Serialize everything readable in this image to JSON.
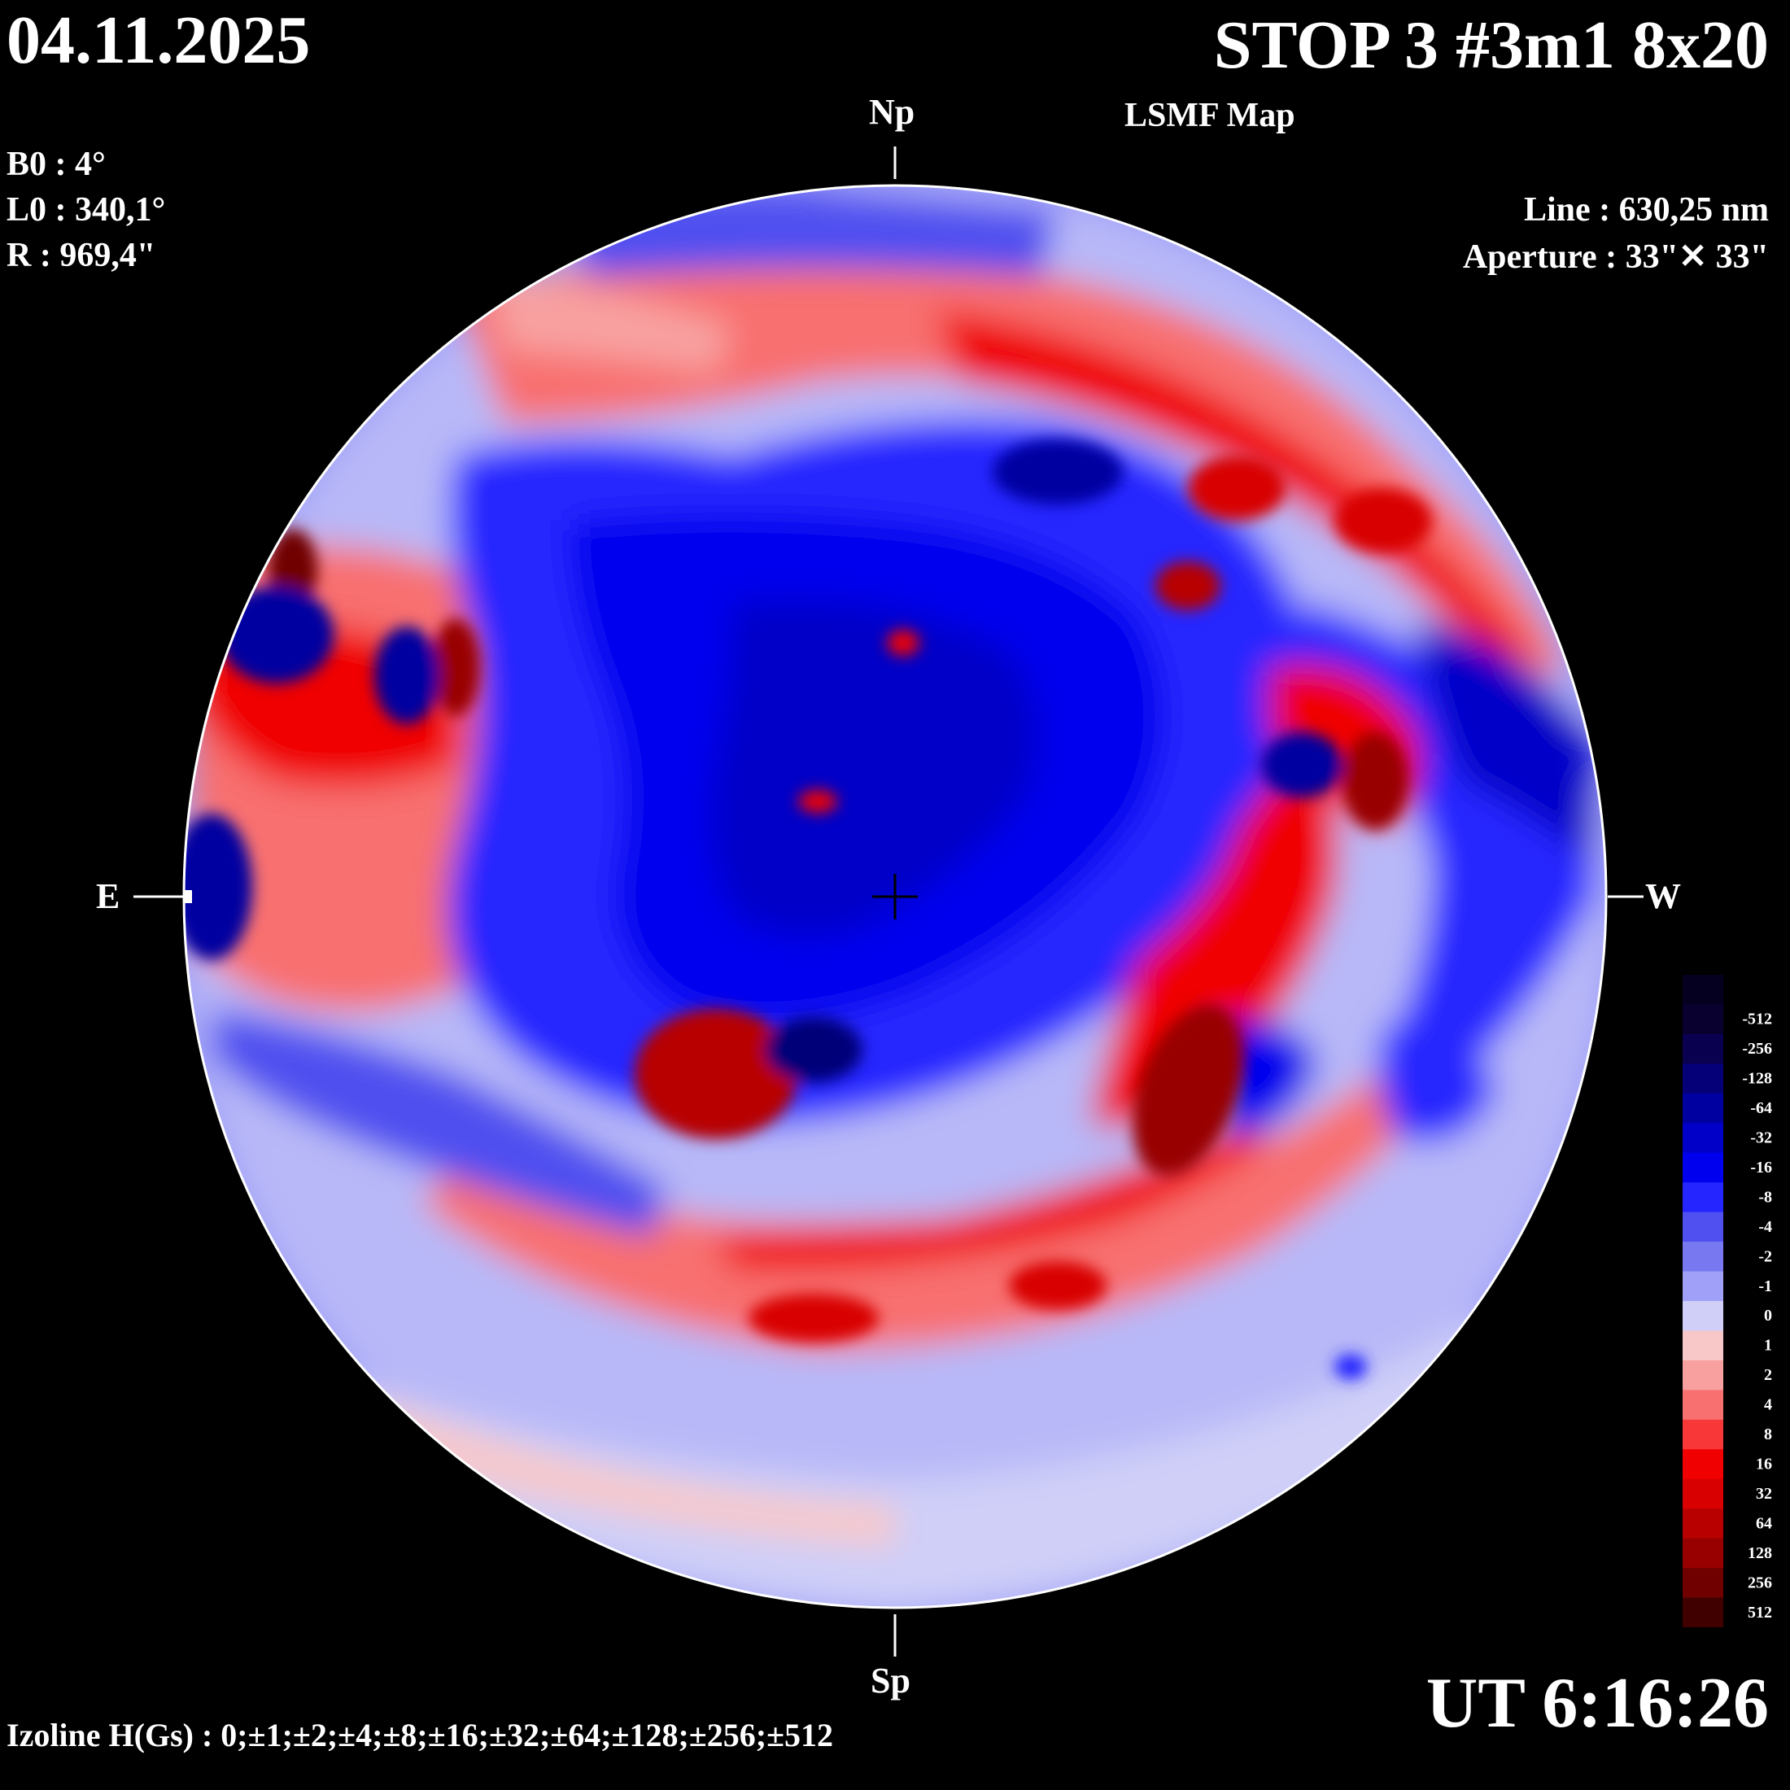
{
  "header": {
    "date": "04.11.2025",
    "title": "STOP 3 #3m1 8x20",
    "subtitle": "LSMF  Map"
  },
  "params": {
    "b0": "B0 : 4°",
    "l0": "L0 : 340,1°",
    "r": "R  : 969,4\"",
    "line": "Line :  630,25 nm",
    "aperture": "Aperture : 33\"✕ 33\""
  },
  "directions": {
    "north": "Np",
    "south": "Sp",
    "east": "E",
    "west": "W"
  },
  "time": "UT 6:16:26",
  "izoline": "Izoline H(Gs) : 0;±1;±2;±4;±8;±16;±32;±64;±128;±256;±512",
  "legend": {
    "levels": [
      {
        "label": "-512",
        "color": "#0a0030"
      },
      {
        "label": "-256",
        "color": "#0a0050"
      },
      {
        "label": "-128",
        "color": "#060078"
      },
      {
        "label": "-64",
        "color": "#0000a0"
      },
      {
        "label": "-32",
        "color": "#0000c8"
      },
      {
        "label": "-16",
        "color": "#0000ee"
      },
      {
        "label": "-8",
        "color": "#2525ff"
      },
      {
        "label": "-4",
        "color": "#5050f0"
      },
      {
        "label": "-2",
        "color": "#7878f0"
      },
      {
        "label": "-1",
        "color": "#a0a0f8"
      },
      {
        "label": "0",
        "color": "#cfcff8"
      },
      {
        "label": "1",
        "color": "#f8c8c8"
      },
      {
        "label": "2",
        "color": "#f8a0a0"
      },
      {
        "label": "4",
        "color": "#f87070"
      },
      {
        "label": "8",
        "color": "#f83838"
      },
      {
        "label": "16",
        "color": "#f00000"
      },
      {
        "label": "32",
        "color": "#d80000"
      },
      {
        "label": "64",
        "color": "#b80000"
      },
      {
        "label": "128",
        "color": "#980000"
      },
      {
        "label": "256",
        "color": "#700000"
      },
      {
        "label": "512",
        "color": "#400000"
      }
    ]
  },
  "colors": {
    "background": "#000000",
    "disk_edge": "#ffffff",
    "strong_negative": "#0000c8",
    "weak_negative": "#a0a0f8",
    "neutral": "#cfcff8",
    "weak_positive": "#f8a0a0",
    "strong_positive": "#d80000"
  }
}
